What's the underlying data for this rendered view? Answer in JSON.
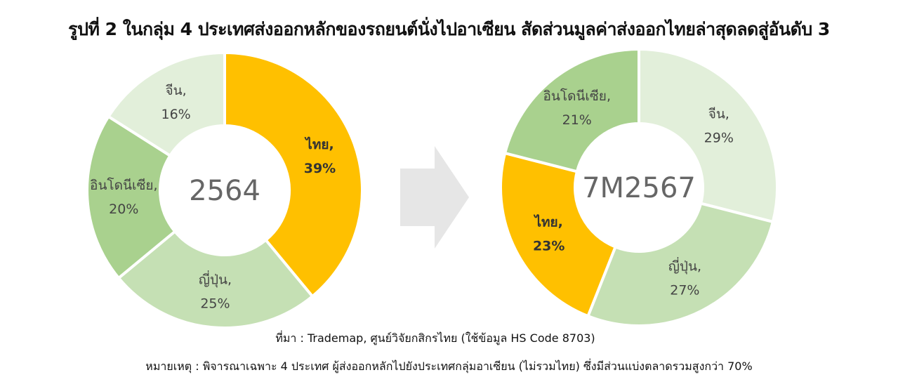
{
  "title": "รูปที่ 2 ในกลุ่ม 4 ประเทศส่งออกหลักของรถยนต์นั่งไปอาเซียน สัดส่วนมูลค่าส่งออกไทยล่าสุดลดสู่อันดับ 3",
  "source": "ที่มา : Trademap, ศูนย์วิจัยกสิกรไทย (ใช้ข้อมูล HS Code 8703)",
  "note": "หมายเหตุ : พิจารณาเฉพาะ 4 ประเทศ ผู้ส่งออกหลักไปยังประเทศกลุ่มอาเซียน (ไม่รวมไทย) ซึ่งมีส่วนแบ่งตลาดรวมสูงกว่า 70%",
  "colors": {
    "thai": "#FFC000",
    "japan": "#C5E0B4",
    "indonesia": "#A9D18E",
    "china": "#E2EFDA",
    "arrow": "#E6E6E6"
  },
  "chart_data": [
    {
      "type": "pie",
      "donut": true,
      "center_label": "2564",
      "slices": [
        {
          "label": "ไทย,",
          "value": 39,
          "value_label": "39%",
          "color": "#FFC000",
          "bold": true
        },
        {
          "label": "ญี่ปุ่น,",
          "value": 25,
          "value_label": "25%",
          "color": "#C5E0B4",
          "bold": false
        },
        {
          "label": "อินโดนีเซีย,",
          "value": 20,
          "value_label": "20%",
          "color": "#A9D18E",
          "bold": false
        },
        {
          "label": "จีน,",
          "value": 16,
          "value_label": "16%",
          "color": "#E2EFDA",
          "bold": false
        }
      ]
    },
    {
      "type": "pie",
      "donut": true,
      "center_label": "7M2567",
      "slices": [
        {
          "label": "จีน,",
          "value": 29,
          "value_label": "29%",
          "color": "#E2EFDA",
          "bold": false
        },
        {
          "label": "ญี่ปุ่น,",
          "value": 27,
          "value_label": "27%",
          "color": "#C5E0B4",
          "bold": false
        },
        {
          "label": "ไทย,",
          "value": 23,
          "value_label": "23%",
          "color": "#FFC000",
          "bold": true
        },
        {
          "label": "อินโดนีเซีย,",
          "value": 21,
          "value_label": "21%",
          "color": "#A9D18E",
          "bold": false
        }
      ]
    }
  ]
}
